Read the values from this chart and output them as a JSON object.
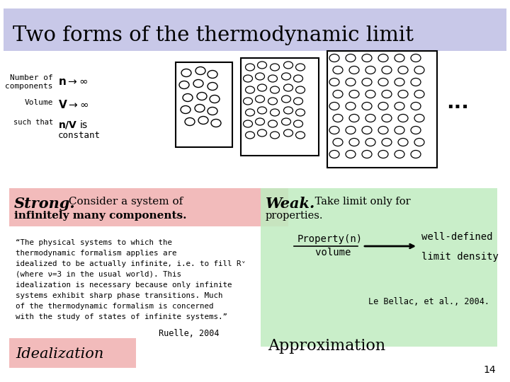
{
  "title": "Two forms of the thermodynamic limit",
  "title_bg": "#c8c8e8",
  "bg_color": "#ffffff",
  "strong_bg": "#f0b0b0",
  "weak_bg": "#c0ecc0",
  "idealization_bg": "#f0b0b0",
  "approximation_bg": "#c0ecc0",
  "strong_text": "Strong.",
  "weak_text": "Weak.",
  "idealization_text": "Idealization",
  "approximation_text": "Approximation",
  "ruelle": "Ruelle, 2004",
  "bellac": "Le Bellac, et al., 2004.",
  "page_num": "14",
  "dots": "..."
}
